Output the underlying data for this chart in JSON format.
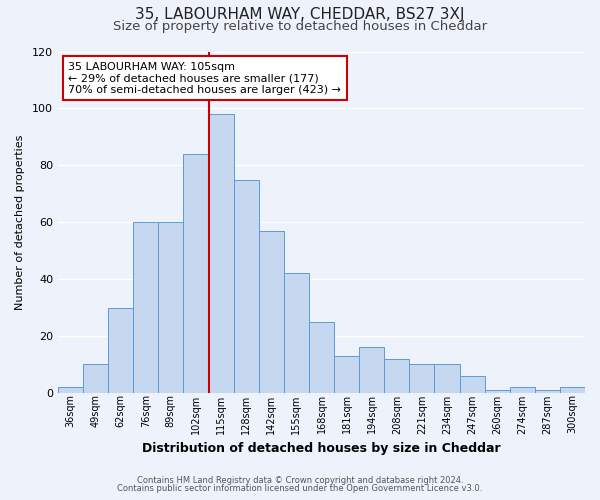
{
  "title": "35, LABOURHAM WAY, CHEDDAR, BS27 3XJ",
  "subtitle": "Size of property relative to detached houses in Cheddar",
  "xlabel": "Distribution of detached houses by size in Cheddar",
  "ylabel": "Number of detached properties",
  "footnote1": "Contains HM Land Registry data © Crown copyright and database right 2024.",
  "footnote2": "Contains public sector information licensed under the Open Government Licence v3.0.",
  "categories": [
    "36sqm",
    "49sqm",
    "62sqm",
    "76sqm",
    "89sqm",
    "102sqm",
    "115sqm",
    "128sqm",
    "142sqm",
    "155sqm",
    "168sqm",
    "181sqm",
    "194sqm",
    "208sqm",
    "221sqm",
    "234sqm",
    "247sqm",
    "260sqm",
    "274sqm",
    "287sqm",
    "300sqm"
  ],
  "values": [
    2,
    10,
    30,
    60,
    60,
    84,
    98,
    75,
    57,
    42,
    25,
    13,
    16,
    12,
    10,
    10,
    6,
    1,
    2,
    1,
    2
  ],
  "bar_color": "#c5d8f0",
  "bar_edge_color": "#5b9bd5",
  "annotation_line1": "35 LABOURHAM WAY: 105sqm",
  "annotation_line2": "← 29% of detached houses are smaller (177)",
  "annotation_line3": "70% of semi-detached houses are larger (423) →",
  "vline_color": "#cc0000",
  "annotation_box_edge": "#cc0000",
  "vline_index": 5.5,
  "ylim": [
    0,
    120
  ],
  "yticks": [
    0,
    20,
    40,
    60,
    80,
    100,
    120
  ],
  "background_color": "#eef2fa",
  "title_fontsize": 11,
  "subtitle_fontsize": 9.5,
  "grid_color": "#ffffff"
}
